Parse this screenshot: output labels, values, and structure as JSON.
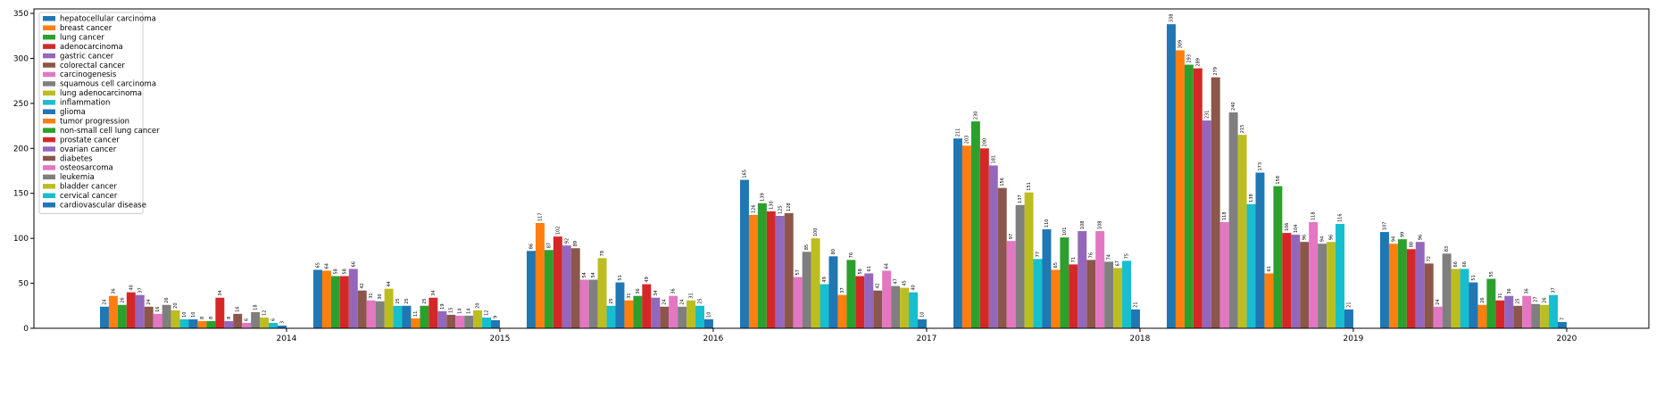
{
  "chart_data": {
    "type": "bar",
    "categories": [
      "2014",
      "2015",
      "2016",
      "2017",
      "2018",
      "2019",
      "2020"
    ],
    "ylim": [
      0,
      355
    ],
    "yticks": [
      0,
      50,
      100,
      150,
      200,
      250,
      300,
      350
    ],
    "grid": false,
    "legend_position": "top-left",
    "colors": [
      "#1f77b4",
      "#ff7f0e",
      "#2ca02c",
      "#d62728",
      "#9467bd",
      "#8c564b",
      "#e377c2",
      "#7f7f7f",
      "#bcbd22",
      "#17becf"
    ],
    "series": [
      {
        "name": "hepatocellular carcinoma",
        "values": [
          24,
          65,
          86,
          165,
          211,
          338,
          107
        ]
      },
      {
        "name": "breast cancer",
        "values": [
          36,
          64,
          117,
          126,
          203,
          309,
          94
        ]
      },
      {
        "name": "lung cancer",
        "values": [
          26,
          58,
          87,
          139,
          230,
          293,
          99
        ]
      },
      {
        "name": "adenocarcinoma",
        "values": [
          40,
          58,
          102,
          130,
          200,
          289,
          88
        ]
      },
      {
        "name": "gastric cancer",
        "values": [
          37,
          66,
          92,
          125,
          181,
          231,
          96
        ]
      },
      {
        "name": "colorectal cancer",
        "values": [
          24,
          42,
          89,
          128,
          156,
          279,
          72
        ]
      },
      {
        "name": "carcinogenesis",
        "values": [
          16,
          31,
          54,
          57,
          97,
          118,
          24
        ]
      },
      {
        "name": "squamous cell carcinoma",
        "values": [
          26,
          30,
          54,
          85,
          137,
          240,
          83
        ]
      },
      {
        "name": "lung adenocarcinoma",
        "values": [
          20,
          44,
          78,
          100,
          151,
          215,
          66
        ]
      },
      {
        "name": "inflammation",
        "values": [
          10,
          25,
          25,
          49,
          77,
          138,
          66
        ]
      },
      {
        "name": "glioma",
        "values": [
          10,
          25,
          51,
          80,
          110,
          173,
          51
        ]
      },
      {
        "name": "tumor progression",
        "values": [
          8,
          11,
          31,
          37,
          65,
          61,
          26
        ]
      },
      {
        "name": "non-small cell lung cancer",
        "values": [
          8,
          25,
          36,
          76,
          101,
          158,
          55
        ]
      },
      {
        "name": "prostate cancer",
        "values": [
          34,
          34,
          49,
          58,
          71,
          106,
          31
        ]
      },
      {
        "name": "ovarian cancer",
        "values": [
          8,
          19,
          34,
          61,
          108,
          104,
          36
        ]
      },
      {
        "name": "diabetes",
        "values": [
          16,
          15,
          24,
          42,
          76,
          96,
          25
        ]
      },
      {
        "name": "osteosarcoma",
        "values": [
          6,
          14,
          36,
          64,
          108,
          118,
          36
        ]
      },
      {
        "name": "leukemia",
        "values": [
          18,
          14,
          24,
          47,
          74,
          94,
          27
        ]
      },
      {
        "name": "bladder cancer",
        "values": [
          12,
          20,
          31,
          45,
          67,
          96,
          26
        ]
      },
      {
        "name": "cervical cancer",
        "values": [
          6,
          12,
          25,
          40,
          75,
          116,
          37
        ]
      },
      {
        "name": "cardiovascular disease",
        "values": [
          3,
          9,
          10,
          10,
          21,
          21,
          7
        ]
      }
    ]
  }
}
